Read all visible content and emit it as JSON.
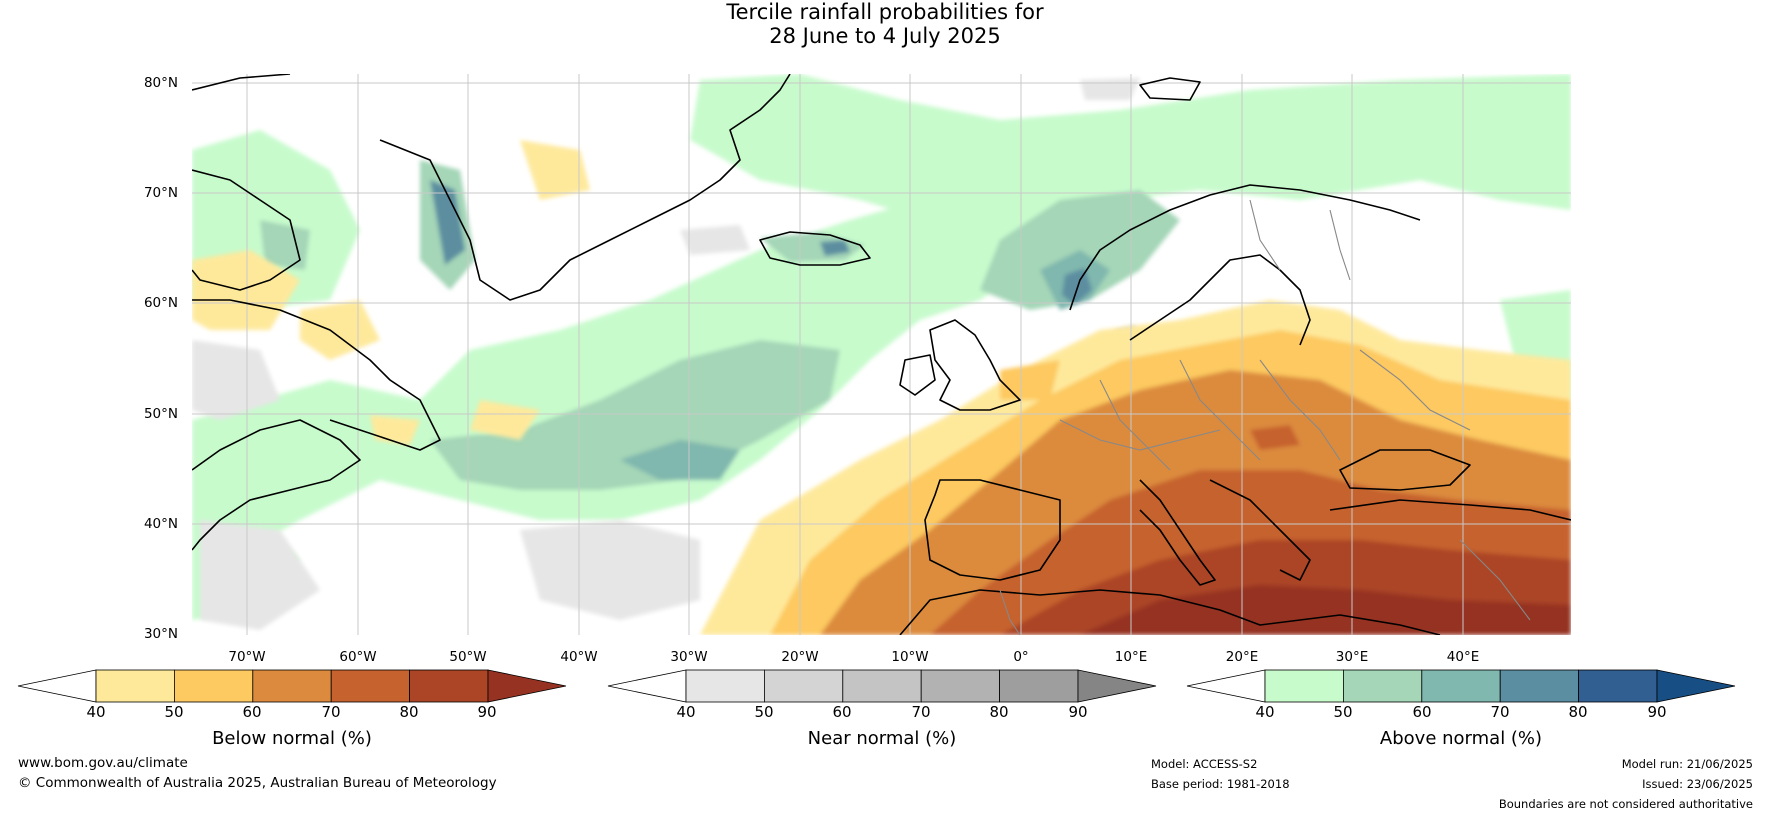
{
  "title": {
    "line1": "Tercile rainfall probabilities for",
    "line2": "28 June to 4 July 2025"
  },
  "map": {
    "lat_labels": [
      "80°N",
      "70°N",
      "60°N",
      "50°N",
      "40°N",
      "30°N"
    ],
    "lon_labels": [
      "70°W",
      "60°W",
      "50°W",
      "40°W",
      "30°W",
      "20°W",
      "10°W",
      "0°",
      "10°E",
      "20°E",
      "30°E",
      "40°E"
    ]
  },
  "colorbars": [
    {
      "title": "Below normal (%)",
      "ticks": [
        "40",
        "50",
        "60",
        "70",
        "80",
        "90"
      ],
      "colors": [
        "#ffffff",
        "#fee99b",
        "#fdc961",
        "#dc8b3e",
        "#c6622d",
        "#ab4525",
        "#953221"
      ]
    },
    {
      "title": "Near normal (%)",
      "ticks": [
        "40",
        "50",
        "60",
        "70",
        "80",
        "90"
      ],
      "colors": [
        "#ffffff",
        "#e6e6e6",
        "#d4d4d4",
        "#c4c4c4",
        "#b2b2b2",
        "#9e9e9e",
        "#858585"
      ]
    },
    {
      "title": "Above normal (%)",
      "ticks": [
        "40",
        "50",
        "60",
        "70",
        "80",
        "90"
      ],
      "colors": [
        "#ffffff",
        "#c7fbcc",
        "#a4d6b7",
        "#80b7ae",
        "#5b8ea0",
        "#315f91",
        "#174f84"
      ]
    }
  ],
  "footer": {
    "website": "www.bom.gov.au/climate",
    "copyright": "© Commonwealth of Australia 2025, Australian Bureau of Meteorology",
    "model": "Model: ACCESS-S2",
    "base_period": "Base period: 1981-2018",
    "model_run": "Model run: 21/06/2025",
    "issued": "Issued: 23/06/2025",
    "disclaimer": "Boundaries are not considered authoritative"
  }
}
